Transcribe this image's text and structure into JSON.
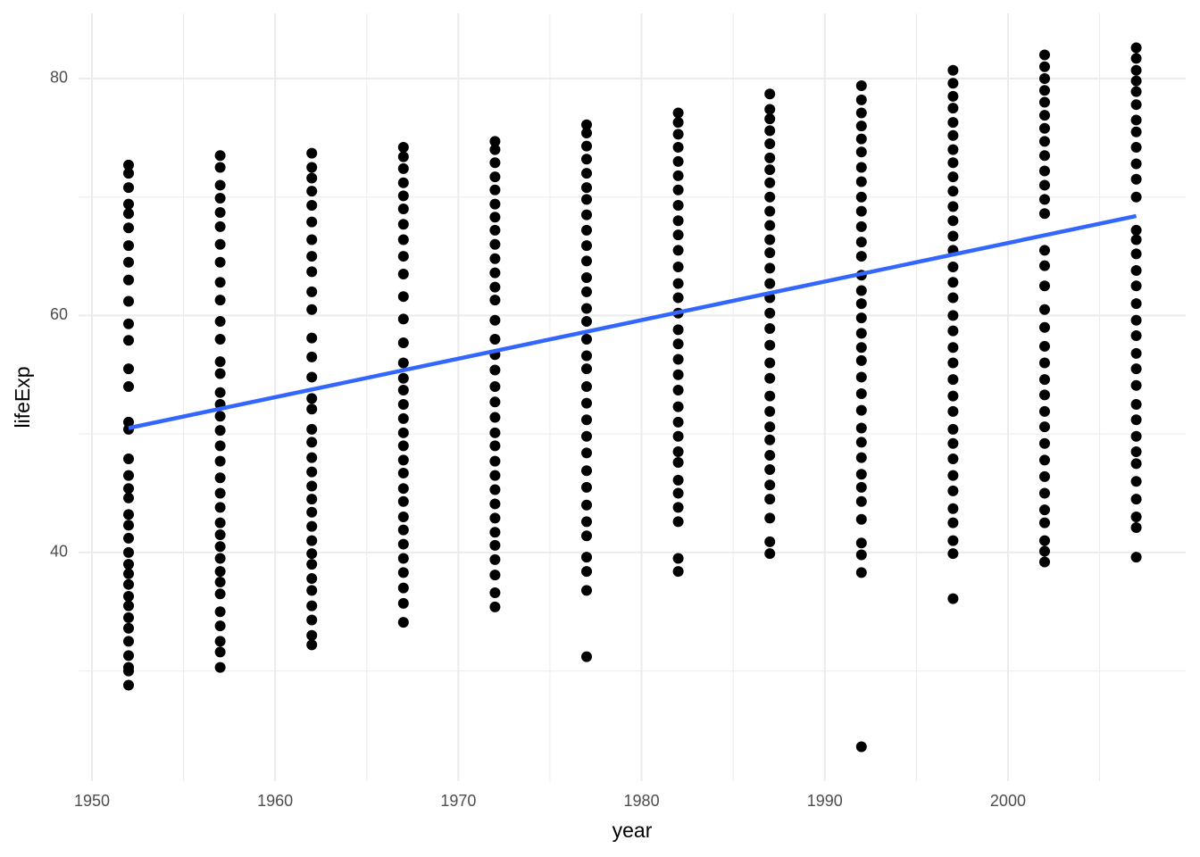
{
  "chart_data": {
    "type": "scatter",
    "x_label": "year",
    "y_label": "lifeExp",
    "xlim": [
      1949.27,
      2009.7
    ],
    "ylim": [
      20.7,
      85.5
    ],
    "xticks": [
      1950,
      1960,
      1970,
      1980,
      1990,
      2000
    ],
    "yticks": [
      40,
      60,
      80
    ],
    "grid": true,
    "minor_grid": true,
    "point_color": "#000000",
    "series": [
      {
        "x": 1952,
        "values": [
          28.8,
          30.0,
          30.3,
          31.3,
          32.5,
          33.6,
          34.5,
          35.5,
          36.3,
          37.3,
          38.2,
          39.0,
          40.0,
          41.2,
          42.3,
          43.2,
          44.6,
          45.4,
          46.5,
          47.9,
          50.4,
          51.0,
          54.0,
          55.5,
          57.9,
          59.3,
          61.2,
          63.0,
          64.5,
          65.9,
          67.4,
          68.6,
          69.4,
          70.8,
          72.0,
          72.7
        ]
      },
      {
        "x": 1957,
        "values": [
          30.3,
          31.6,
          32.5,
          33.8,
          35.0,
          36.5,
          37.5,
          38.4,
          39.5,
          40.5,
          41.5,
          42.5,
          43.8,
          45.0,
          46.3,
          47.7,
          49.0,
          50.3,
          51.5,
          52.5,
          53.5,
          55.1,
          56.1,
          58.0,
          59.5,
          61.3,
          62.8,
          64.5,
          66.0,
          67.5,
          68.7,
          69.9,
          71.0,
          72.5,
          73.5
        ]
      },
      {
        "x": 1962,
        "values": [
          32.2,
          33.0,
          34.3,
          35.5,
          36.8,
          37.8,
          39.0,
          39.9,
          41.0,
          42.2,
          43.4,
          44.5,
          45.6,
          46.8,
          48.0,
          49.3,
          50.4,
          52.1,
          53.0,
          54.8,
          56.5,
          58.1,
          60.5,
          62.0,
          63.7,
          65.0,
          66.4,
          67.9,
          69.3,
          70.5,
          71.6,
          72.5,
          73.7
        ]
      },
      {
        "x": 1967,
        "values": [
          34.1,
          35.7,
          37.0,
          38.3,
          39.5,
          40.7,
          41.9,
          43.0,
          44.3,
          45.4,
          46.7,
          47.8,
          49.0,
          50.1,
          51.3,
          52.5,
          53.7,
          54.7,
          56.0,
          57.7,
          59.7,
          61.6,
          63.5,
          65.0,
          66.4,
          67.7,
          69.0,
          70.1,
          71.2,
          72.4,
          73.4,
          74.2
        ]
      },
      {
        "x": 1972,
        "values": [
          35.4,
          36.6,
          38.1,
          39.4,
          40.6,
          41.7,
          42.9,
          44.1,
          45.3,
          46.5,
          47.7,
          49.0,
          50.1,
          51.4,
          52.7,
          54.0,
          55.4,
          56.7,
          58.0,
          59.6,
          61.3,
          62.4,
          63.6,
          64.8,
          66.0,
          67.2,
          68.3,
          69.4,
          70.6,
          71.7,
          72.9,
          74.0,
          74.7
        ]
      },
      {
        "x": 1977,
        "values": [
          31.2,
          36.8,
          38.4,
          39.6,
          41.4,
          42.6,
          44.0,
          45.5,
          46.9,
          48.4,
          49.8,
          51.2,
          52.6,
          54.0,
          55.5,
          56.6,
          58.0,
          59.5,
          60.6,
          62.0,
          63.2,
          64.6,
          65.9,
          67.2,
          68.5,
          69.8,
          70.8,
          72.0,
          73.2,
          74.3,
          75.4,
          76.1
        ]
      },
      {
        "x": 1982,
        "values": [
          38.4,
          39.5,
          42.6,
          43.8,
          45.0,
          46.1,
          47.6,
          48.5,
          49.8,
          51.0,
          52.3,
          53.7,
          55.0,
          56.3,
          57.6,
          58.8,
          60.2,
          61.5,
          62.7,
          64.1,
          65.5,
          66.8,
          68.0,
          69.3,
          70.6,
          71.8,
          73.0,
          74.2,
          75.3,
          76.3,
          77.1
        ]
      },
      {
        "x": 1987,
        "values": [
          39.9,
          40.9,
          42.9,
          44.5,
          45.7,
          47.0,
          48.2,
          49.5,
          50.6,
          51.9,
          53.2,
          54.7,
          56.0,
          57.5,
          58.9,
          60.2,
          61.5,
          62.7,
          64.0,
          65.3,
          66.4,
          67.6,
          68.8,
          70.0,
          71.2,
          72.3,
          73.3,
          74.5,
          75.6,
          76.6,
          77.4,
          78.7
        ]
      },
      {
        "x": 1992,
        "values": [
          23.6,
          38.3,
          39.8,
          40.8,
          42.8,
          44.3,
          45.5,
          46.6,
          48.0,
          49.3,
          50.5,
          52.0,
          53.4,
          54.8,
          56.2,
          57.3,
          58.5,
          59.8,
          61.0,
          62.1,
          63.4,
          65.0,
          66.2,
          67.5,
          68.8,
          70.0,
          71.3,
          72.5,
          73.8,
          74.9,
          76.0,
          77.1,
          78.2,
          79.4
        ]
      },
      {
        "x": 1997,
        "values": [
          36.1,
          39.9,
          41.0,
          42.5,
          43.7,
          45.2,
          46.5,
          47.9,
          49.2,
          50.4,
          51.9,
          53.2,
          54.6,
          56.0,
          57.3,
          58.7,
          60.0,
          61.5,
          62.8,
          64.1,
          65.5,
          66.7,
          68.0,
          69.2,
          70.5,
          71.7,
          72.9,
          74.0,
          75.2,
          76.3,
          77.5,
          78.5,
          79.6,
          80.7
        ]
      },
      {
        "x": 2002,
        "values": [
          39.2,
          40.1,
          41.0,
          42.5,
          43.6,
          45.0,
          46.4,
          47.8,
          49.2,
          50.6,
          51.9,
          53.3,
          54.6,
          56.0,
          57.4,
          59.0,
          60.5,
          62.5,
          64.2,
          65.5,
          68.6,
          69.8,
          71.0,
          72.2,
          73.5,
          74.7,
          75.8,
          76.9,
          78.0,
          79.0,
          80.0,
          81.0,
          82.0
        ]
      },
      {
        "x": 2007,
        "values": [
          39.6,
          42.1,
          43.0,
          44.5,
          46.0,
          47.5,
          48.5,
          49.8,
          51.2,
          52.5,
          54.1,
          55.5,
          56.8,
          58.3,
          59.6,
          61.0,
          62.5,
          63.8,
          65.2,
          66.4,
          67.2,
          70.0,
          71.5,
          72.8,
          74.2,
          75.5,
          76.5,
          77.8,
          78.9,
          79.8,
          80.7,
          81.7,
          82.6
        ]
      }
    ],
    "fit": {
      "x": [
        1952,
        2007
      ],
      "values": [
        50.5,
        68.4
      ],
      "color": "#3366ff"
    }
  }
}
